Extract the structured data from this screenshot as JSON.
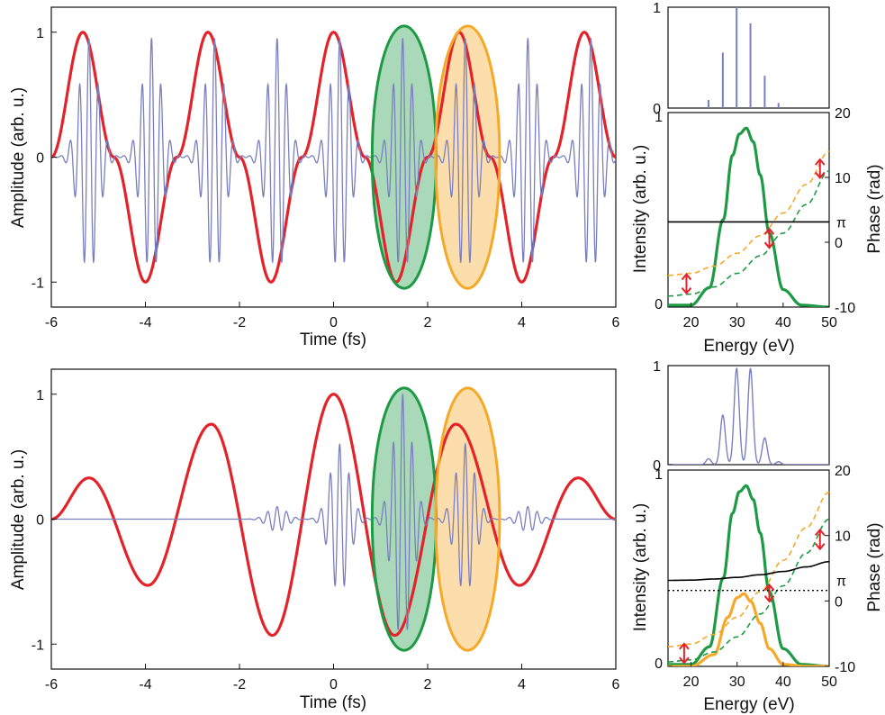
{
  "chart_data": [
    {
      "panel": "top-left",
      "type": "line",
      "xlabel": "Time (fs)",
      "ylabel": "Amplitude (arb. u.)",
      "xlim": [
        -6,
        6
      ],
      "ylim": [
        -1.2,
        1.2
      ],
      "xticks": [
        -6,
        -4,
        -2,
        0,
        2,
        4,
        6
      ],
      "xtick_labels": [
        "-6",
        "-4",
        "-2",
        "0",
        "2",
        "4",
        "6"
      ],
      "yticks": [
        -1,
        0,
        1
      ],
      "ytick_labels": [
        "-1",
        "0",
        "1"
      ],
      "series": [
        {
          "role": "driving-field",
          "color": "#e3232a",
          "x": [
            -6,
            -5.33,
            -4.67,
            -4,
            -3.33,
            -2.67,
            -2,
            -1.33,
            -0.67,
            0,
            0.67,
            1.33,
            2,
            2.67,
            3.33,
            4,
            4.67,
            5.33,
            6
          ],
          "y": [
            0.0,
            1.0,
            0.0,
            -1.0,
            0.0,
            1.0,
            0.0,
            -1.0,
            0.0,
            1.0,
            0.0,
            -1.0,
            0.0,
            1.0,
            0.0,
            -1.0,
            0.0,
            1.0,
            0.0
          ]
        },
        {
          "role": "attosecond-pulse-train",
          "color": "#7a7fc0",
          "x": [
            -5.2,
            -3.87,
            -2.53,
            -1.2,
            0.13,
            1.47,
            2.8,
            4.13,
            5.47
          ],
          "y": [
            0.95,
            0.95,
            0.95,
            0.95,
            0.95,
            0.95,
            0.95,
            0.95,
            0.95
          ]
        }
      ],
      "highlights": [
        {
          "name": "green",
          "color": "#1e9a45",
          "x_center": 1.5,
          "x_halfwidth": 0.68
        },
        {
          "name": "orange",
          "color": "#f6a928",
          "x_center": 2.85,
          "x_halfwidth": 0.68
        }
      ]
    },
    {
      "panel": "top-right-spectrum",
      "type": "bar",
      "xlim": [
        15,
        50
      ],
      "ylim": [
        0,
        1
      ],
      "yticks": [
        0,
        1
      ],
      "ytick_labels": [
        "0",
        "1"
      ],
      "color": "#7a7fc0",
      "x": [
        23.8,
        26.9,
        29.9,
        32.9,
        36.0,
        39.0
      ],
      "values": [
        0.08,
        0.55,
        1.0,
        0.84,
        0.32,
        0.05
      ]
    },
    {
      "panel": "top-right-main",
      "type": "line",
      "xlabel": "Energy (eV)",
      "ylabel": "Intensity (arb. u.)",
      "y2label": "Phase (rad)",
      "xlim": [
        15,
        50
      ],
      "xticks": [
        20,
        30,
        40,
        50
      ],
      "xtick_labels": [
        "20",
        "30",
        "40",
        "50"
      ],
      "ylim": [
        0,
        1
      ],
      "yticks": [
        0,
        1
      ],
      "ytick_labels": [
        "0",
        "1"
      ],
      "y2lim": [
        -10,
        20
      ],
      "y2ticks": [
        -10,
        0,
        10,
        20
      ],
      "y2tick_labels": [
        "-10",
        "0",
        "10",
        "20"
      ],
      "pi_label": "π",
      "series": [
        {
          "role": "green-intensity",
          "color": "#1e9a45",
          "x": [
            20,
            24,
            27,
            29,
            30.5,
            32,
            33.5,
            35,
            37,
            40,
            44,
            50
          ],
          "y": [
            0.01,
            0.1,
            0.45,
            0.78,
            0.89,
            0.92,
            0.85,
            0.68,
            0.38,
            0.09,
            0.01,
            0.0
          ]
        },
        {
          "role": "orange-phase",
          "axis": "y2",
          "dashed": true,
          "color": "#f6a928",
          "x": [
            15,
            20,
            25,
            30,
            35,
            40,
            45,
            50
          ],
          "y": [
            -5.1,
            -4.8,
            -3.7,
            -1.7,
            1.0,
            4.5,
            8.9,
            14.0
          ]
        },
        {
          "role": "green-phase",
          "axis": "y2",
          "dashed": true,
          "color": "#1e9a45",
          "x": [
            15,
            20,
            25,
            30,
            35,
            40,
            45,
            50
          ],
          "y": [
            -8.3,
            -8.0,
            -6.9,
            -4.8,
            -2.1,
            1.4,
            5.8,
            11.0
          ]
        },
        {
          "role": "relative-phase",
          "axis": "y2",
          "color": "#000000",
          "x": [
            15,
            50
          ],
          "y": [
            3.14,
            3.14
          ]
        }
      ],
      "arrows": [
        {
          "x": 19,
          "y_from": -8.0,
          "y_to": -4.8
        },
        {
          "x": 37,
          "y_from": -1.0,
          "y_to": 2.2
        },
        {
          "x": 48,
          "y_from": 9.8,
          "y_to": 12.9
        }
      ]
    },
    {
      "panel": "bottom-left",
      "type": "line",
      "xlabel": "Time (fs)",
      "ylabel": "Amplitude (arb. u.)",
      "xlim": [
        -6,
        6
      ],
      "ylim": [
        -1.2,
        1.2
      ],
      "xticks": [
        -6,
        -4,
        -2,
        0,
        2,
        4,
        6
      ],
      "xtick_labels": [
        "-6",
        "-4",
        "-2",
        "0",
        "2",
        "4",
        "6"
      ],
      "yticks": [
        -1,
        0,
        1
      ],
      "ytick_labels": [
        "-1",
        "0",
        "1"
      ],
      "series": [
        {
          "role": "driving-field",
          "color": "#e3232a",
          "x": [
            -6,
            -5.2,
            -3.95,
            -2.6,
            -1.3,
            0,
            1.3,
            2.6,
            3.95,
            5.2,
            6
          ],
          "y": [
            0.0,
            0.33,
            -0.53,
            0.76,
            -0.93,
            1.0,
            -0.93,
            0.76,
            -0.53,
            0.33,
            0.0
          ]
        },
        {
          "role": "attosecond-pulse-train",
          "color": "#7a7fc0",
          "x": [
            -1.2,
            0.13,
            1.47,
            2.8,
            4.13
          ],
          "y": [
            0.1,
            0.6,
            1.0,
            0.6,
            0.1
          ]
        }
      ],
      "highlights": [
        {
          "name": "green",
          "color": "#1e9a45",
          "x_center": 1.5,
          "x_halfwidth": 0.68
        },
        {
          "name": "orange",
          "color": "#f6a928",
          "x_center": 2.85,
          "x_halfwidth": 0.68
        }
      ]
    },
    {
      "panel": "bottom-right-spectrum",
      "type": "line",
      "xlim": [
        15,
        50
      ],
      "ylim": [
        0,
        1
      ],
      "yticks": [
        0,
        1
      ],
      "ytick_labels": [
        "0",
        "1"
      ],
      "color": "#7a7fc0",
      "x": [
        23.8,
        26.9,
        29.9,
        32.9,
        36.0,
        39.0
      ],
      "values": [
        0.06,
        0.5,
        0.97,
        0.97,
        0.27,
        0.03
      ]
    },
    {
      "panel": "bottom-right-main",
      "type": "line",
      "xlabel": "Energy (eV)",
      "ylabel": "Intensity (arb. u.)",
      "y2label": "Phase (rad)",
      "xlim": [
        15,
        50
      ],
      "xticks": [
        20,
        30,
        40,
        50
      ],
      "xtick_labels": [
        "20",
        "30",
        "40",
        "50"
      ],
      "ylim": [
        0,
        1
      ],
      "yticks": [
        0,
        1
      ],
      "ytick_labels": [
        "0",
        "1"
      ],
      "y2lim": [
        -10,
        20
      ],
      "y2ticks": [
        -10,
        0,
        10,
        20
      ],
      "y2tick_labels": [
        "-10",
        "0",
        "10",
        "20"
      ],
      "pi_label": "π",
      "series": [
        {
          "role": "green-intensity",
          "color": "#1e9a45",
          "x": [
            20,
            24,
            27,
            29,
            30.5,
            32,
            33.5,
            35,
            37,
            40,
            44,
            50
          ],
          "y": [
            0.01,
            0.1,
            0.45,
            0.78,
            0.89,
            0.92,
            0.85,
            0.68,
            0.38,
            0.09,
            0.01,
            0.0
          ]
        },
        {
          "role": "orange-intensity",
          "color": "#f6a928",
          "x": [
            20,
            25,
            28,
            30,
            31.5,
            33,
            35,
            37,
            40,
            45,
            50
          ],
          "y": [
            0.0,
            0.06,
            0.25,
            0.35,
            0.37,
            0.33,
            0.22,
            0.09,
            0.01,
            0.0,
            0.0
          ]
        },
        {
          "role": "orange-phase",
          "axis": "y2",
          "dashed": true,
          "color": "#f6a928",
          "x": [
            15,
            20,
            25,
            30,
            35,
            40,
            45,
            50
          ],
          "y": [
            -7.0,
            -6.6,
            -5.1,
            -2.5,
            1.4,
            6.2,
            11.2,
            16.6
          ]
        },
        {
          "role": "green-phase",
          "axis": "y2",
          "dashed": true,
          "color": "#1e9a45",
          "x": [
            15,
            20,
            25,
            30,
            35,
            40,
            45,
            50
          ],
          "y": [
            -9.3,
            -9.0,
            -7.8,
            -5.5,
            -2.0,
            2.3,
            7.3,
            12.5
          ]
        },
        {
          "role": "relative-phase",
          "axis": "y2",
          "color": "#000000",
          "x": [
            15,
            20,
            25,
            30,
            35,
            40,
            45,
            50
          ],
          "y": [
            3.14,
            3.18,
            3.35,
            3.6,
            4.0,
            4.5,
            5.2,
            6.0
          ]
        },
        {
          "role": "pi-reference",
          "axis": "y2",
          "dotted": true,
          "color": "#000000",
          "x": [
            15,
            50
          ],
          "y": [
            1.6,
            1.6
          ]
        }
      ],
      "arrows": [
        {
          "x": 18.5,
          "y_from": -9.6,
          "y_to": -6.4
        },
        {
          "x": 37,
          "y_from": -0.2,
          "y_to": 2.6
        },
        {
          "x": 48,
          "y_from": 7.8,
          "y_to": 11.0
        }
      ]
    }
  ]
}
